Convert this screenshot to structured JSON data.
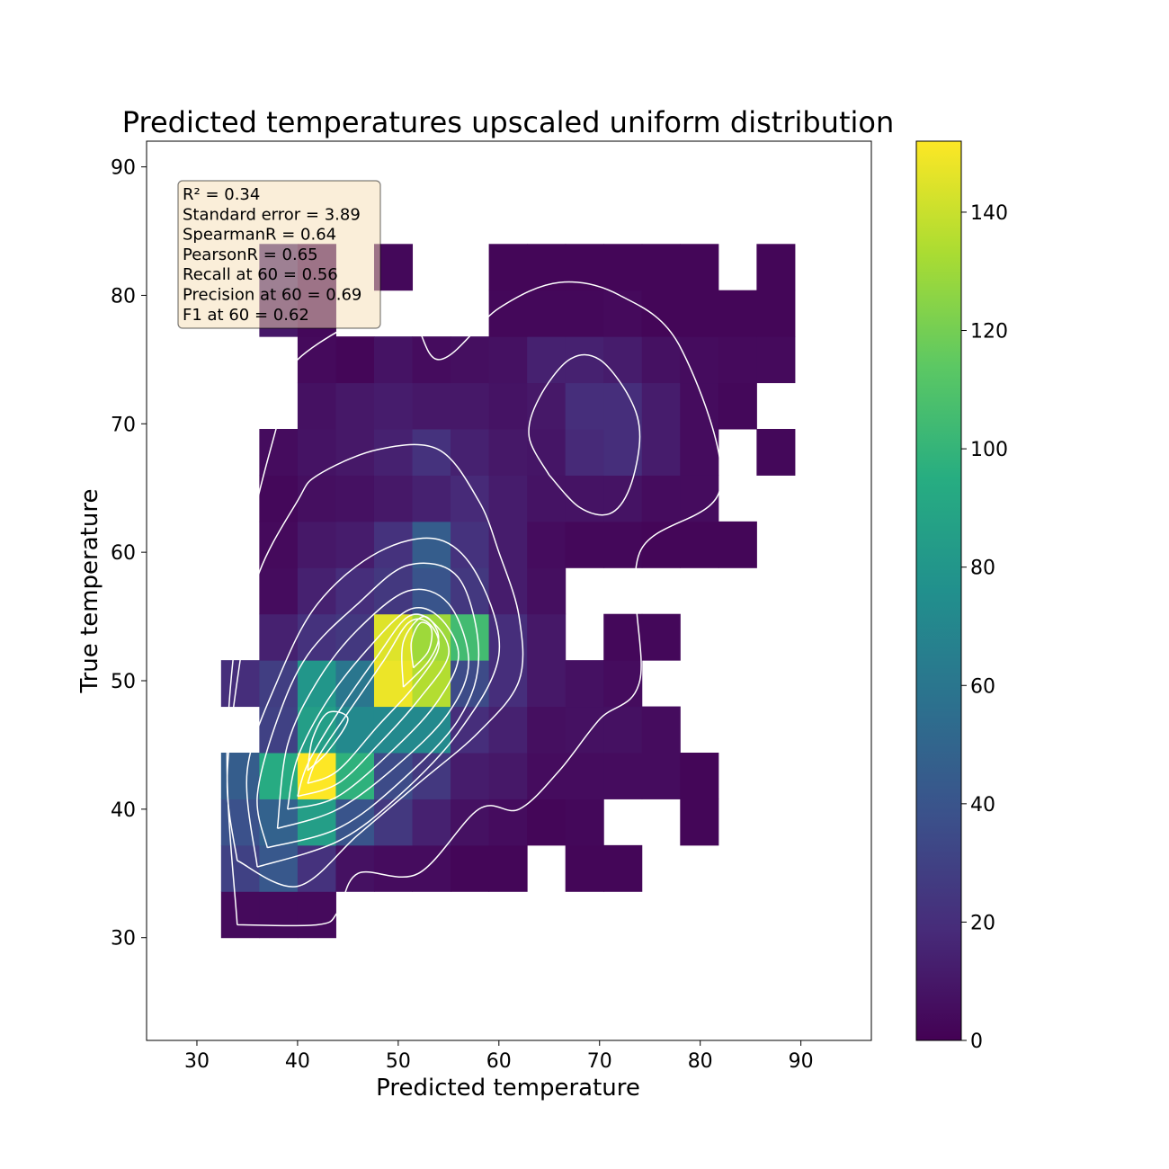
{
  "chart_data": {
    "type": "heatmap",
    "title": "Predicted temperatures upscaled uniform distribution",
    "xlabel": "Predicted temperature",
    "ylabel": "True temperature",
    "xlim": [
      25,
      97
    ],
    "ylim": [
      22,
      92
    ],
    "xticks": [
      30,
      40,
      50,
      60,
      70,
      80,
      90
    ],
    "yticks": [
      30,
      40,
      50,
      60,
      70,
      80,
      90
    ],
    "colormap": "viridis",
    "colorbar": {
      "range": [
        0,
        152
      ],
      "ticks": [
        0,
        20,
        40,
        60,
        80,
        100,
        120,
        140
      ]
    },
    "x_bin_edges": [
      32.4,
      36.2,
      40.0,
      43.8,
      47.6,
      51.4,
      55.2,
      59.0,
      62.8,
      66.6,
      70.4,
      74.2,
      78.0,
      81.8,
      85.6,
      89.4
    ],
    "y_bin_edges": [
      30.0,
      33.6,
      37.2,
      40.8,
      44.4,
      48.0,
      51.6,
      55.2,
      58.8,
      62.4,
      66.0,
      69.6,
      73.2,
      76.8,
      80.4,
      84.0
    ],
    "counts": [
      [
        4,
        4,
        4,
        0,
        0,
        0,
        0,
        0,
        0,
        0,
        0,
        0,
        0,
        0,
        0
      ],
      [
        30,
        42,
        22,
        7,
        5,
        5,
        2,
        2,
        0,
        2,
        2,
        0,
        0,
        0,
        0
      ],
      [
        38,
        48,
        85,
        40,
        25,
        14,
        7,
        5,
        2,
        3,
        0,
        0,
        2,
        0,
        0
      ],
      [
        45,
        94,
        152,
        98,
        35,
        25,
        12,
        10,
        5,
        5,
        5,
        5,
        2,
        0,
        0
      ],
      [
        0,
        30,
        85,
        72,
        72,
        72,
        20,
        14,
        6,
        7,
        7,
        5,
        0,
        0,
        0
      ],
      [
        20,
        28,
        80,
        60,
        148,
        135,
        35,
        20,
        10,
        7,
        5,
        0,
        0,
        0,
        0
      ],
      [
        0,
        14,
        22,
        25,
        145,
        130,
        105,
        20,
        10,
        0,
        3,
        3,
        0,
        0,
        0
      ],
      [
        0,
        5,
        14,
        20,
        25,
        40,
        25,
        12,
        6,
        0,
        0,
        0,
        0,
        0,
        0
      ],
      [
        0,
        4,
        10,
        12,
        22,
        45,
        22,
        12,
        5,
        3,
        3,
        2,
        2,
        2,
        0
      ],
      [
        0,
        3,
        6,
        7,
        10,
        14,
        18,
        12,
        8,
        8,
        8,
        5,
        5,
        0,
        0
      ],
      [
        0,
        5,
        8,
        10,
        14,
        22,
        14,
        10,
        9,
        18,
        20,
        12,
        5,
        0,
        3
      ],
      [
        0,
        0,
        7,
        10,
        12,
        10,
        10,
        8,
        10,
        20,
        20,
        12,
        5,
        3,
        0
      ],
      [
        0,
        0,
        4,
        2,
        8,
        5,
        6,
        7,
        14,
        14,
        12,
        7,
        5,
        4,
        4
      ],
      [
        0,
        10,
        3,
        0,
        0,
        0,
        0,
        3,
        3,
        3,
        4,
        2,
        2,
        2,
        2
      ],
      [
        0,
        15,
        3,
        0,
        3,
        0,
        0,
        2,
        2,
        2,
        2,
        2,
        2,
        0,
        2
      ]
    ],
    "kde_contours": [
      [
        [
          34,
          31
        ],
        [
          42,
          31
        ],
        [
          44,
          32
        ],
        [
          46,
          35
        ],
        [
          52,
          35
        ],
        [
          58,
          40
        ],
        [
          62,
          40
        ],
        [
          66,
          43
        ],
        [
          70,
          47
        ],
        [
          74,
          50
        ],
        [
          74,
          60
        ],
        [
          82,
          65
        ],
        [
          78,
          76
        ],
        [
          72,
          80
        ],
        [
          66,
          81
        ],
        [
          60,
          79
        ],
        [
          54,
          75
        ],
        [
          50,
          79
        ],
        [
          40,
          75
        ],
        [
          38,
          70
        ],
        [
          35,
          60
        ],
        [
          33,
          45
        ],
        [
          34,
          31
        ]
      ],
      [
        [
          34,
          36
        ],
        [
          40,
          34
        ],
        [
          46,
          38
        ],
        [
          52,
          42
        ],
        [
          58,
          46
        ],
        [
          62,
          50
        ],
        [
          62,
          55
        ],
        [
          60,
          60
        ],
        [
          58,
          64
        ],
        [
          54,
          68
        ],
        [
          48,
          68
        ],
        [
          42,
          66
        ],
        [
          40,
          64
        ],
        [
          36,
          58
        ],
        [
          34,
          50
        ],
        [
          33,
          42
        ],
        [
          34,
          36
        ]
      ],
      [
        [
          36,
          35.5
        ],
        [
          44,
          37.5
        ],
        [
          50,
          41
        ],
        [
          56,
          46
        ],
        [
          60,
          52
        ],
        [
          58,
          58
        ],
        [
          54,
          61
        ],
        [
          48,
          60
        ],
        [
          42,
          56
        ],
        [
          38,
          50
        ],
        [
          35,
          43
        ],
        [
          36,
          35.5
        ]
      ],
      [
        [
          37,
          37
        ],
        [
          44,
          38.5
        ],
        [
          50,
          42
        ],
        [
          56,
          47
        ],
        [
          58,
          52
        ],
        [
          56,
          58
        ],
        [
          51,
          59
        ],
        [
          46,
          56
        ],
        [
          41,
          52
        ],
        [
          38,
          47
        ],
        [
          36,
          41
        ],
        [
          37,
          37
        ]
      ],
      [
        [
          38,
          38.5
        ],
        [
          44,
          40
        ],
        [
          50,
          43.5
        ],
        [
          55,
          47.5
        ],
        [
          57,
          51.5
        ],
        [
          55,
          56
        ],
        [
          51,
          57
        ],
        [
          46,
          54
        ],
        [
          42,
          50
        ],
        [
          39,
          45
        ],
        [
          38,
          38.5
        ]
      ],
      [
        [
          39,
          40
        ],
        [
          44,
          41
        ],
        [
          50,
          45
        ],
        [
          54,
          48.5
        ],
        [
          56,
          52
        ],
        [
          54,
          55
        ],
        [
          51,
          55.5
        ],
        [
          47,
          52.5
        ],
        [
          43,
          48.5
        ],
        [
          40,
          44
        ],
        [
          39,
          40
        ]
      ],
      [
        [
          40,
          41
        ],
        [
          44,
          42
        ],
        [
          48,
          45
        ],
        [
          52,
          48.5
        ],
        [
          55,
          52
        ],
        [
          53.5,
          54.5
        ],
        [
          51,
          55
        ],
        [
          48,
          52
        ],
        [
          44,
          47.5
        ],
        [
          41,
          43.5
        ],
        [
          40,
          41
        ]
      ],
      [
        [
          41,
          42
        ],
        [
          44,
          43
        ],
        [
          48,
          46.5
        ],
        [
          51.5,
          49.5
        ],
        [
          54,
          52.5
        ],
        [
          53,
          54.5
        ],
        [
          51,
          54.5
        ],
        [
          48.5,
          51.5
        ],
        [
          45,
          47.5
        ],
        [
          42,
          44
        ],
        [
          41,
          42
        ]
      ],
      [
        [
          50.5,
          49.5
        ],
        [
          53,
          51.5
        ],
        [
          54,
          53.5
        ],
        [
          52.5,
          55
        ],
        [
          50.5,
          53
        ],
        [
          50.5,
          49.5
        ]
      ],
      [
        [
          51.5,
          51
        ],
        [
          53,
          52.3
        ],
        [
          53.3,
          54
        ],
        [
          52.2,
          54.5
        ],
        [
          51.3,
          53
        ],
        [
          51.5,
          51
        ]
      ],
      [
        [
          65,
          66
        ],
        [
          68,
          63.5
        ],
        [
          71,
          63
        ],
        [
          73,
          65
        ],
        [
          74,
          69
        ],
        [
          73,
          72
        ],
        [
          70,
          75
        ],
        [
          67,
          75
        ],
        [
          64,
          72
        ],
        [
          63,
          69
        ],
        [
          65,
          66
        ]
      ],
      [
        [
          41,
          43
        ],
        [
          43,
          44.5
        ],
        [
          45,
          47
        ],
        [
          43,
          47.5
        ],
        [
          41.5,
          45.5
        ],
        [
          41,
          43
        ]
      ]
    ],
    "stats_box": [
      "R² = 0.34",
      "Standard error = 3.89",
      "SpearmanR = 0.64",
      "PearsonR = 0.65",
      "Recall at 60  = 0.56",
      "Precision at 60 = 0.69",
      "F1 at 60 = 0.62"
    ]
  }
}
